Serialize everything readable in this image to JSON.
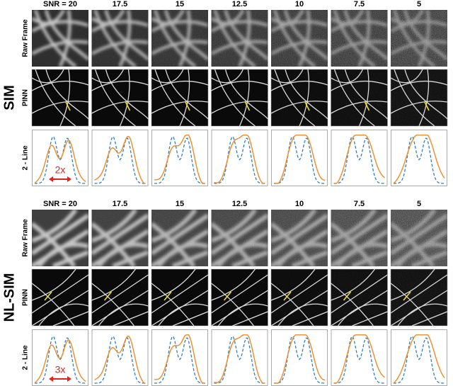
{
  "sections": [
    {
      "label": "SIM",
      "columns": [
        "SNR = 20",
        "17.5",
        "15",
        "12.5",
        "10",
        "7.5",
        "5"
      ],
      "rows": [
        "Raw Frame",
        "PINN",
        "2 - Line"
      ],
      "scale_note": "2x"
    },
    {
      "label": "NL-SIM",
      "columns": [
        "SNR = 20",
        "17.5",
        "15",
        "12.5",
        "10",
        "7.5",
        "5"
      ],
      "rows": [
        "Raw Frame",
        "PINN",
        "2 - Line"
      ],
      "scale_note": "3x"
    }
  ]
}
